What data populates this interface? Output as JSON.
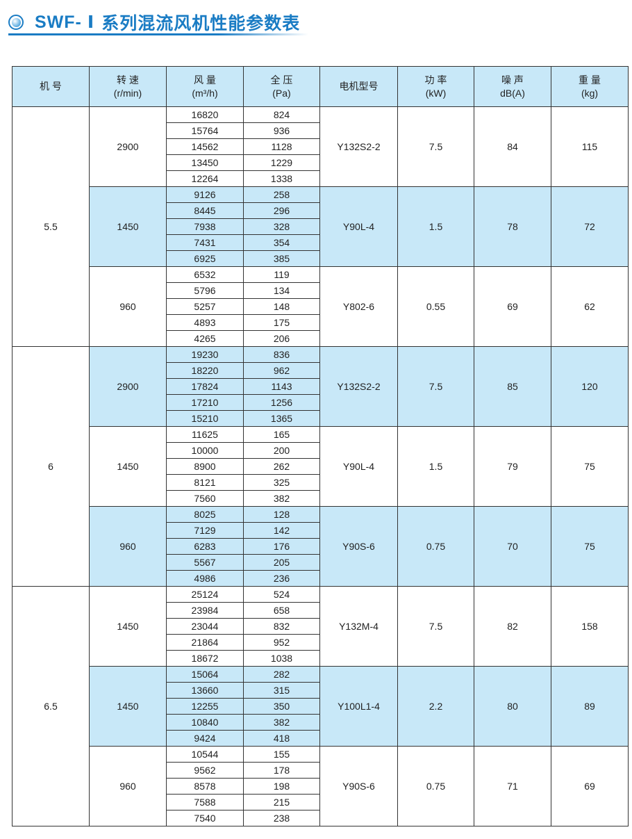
{
  "title": {
    "prefix": "SWF-",
    "roman": "Ⅰ",
    "text": "系列混流风机性能参数表"
  },
  "colors": {
    "accent": "#1a7cc4",
    "shade": "#c8e8f8"
  },
  "headers": [
    [
      "机 号",
      ""
    ],
    [
      "转 速",
      "(r/min)"
    ],
    [
      "风 量",
      "(m³/h)"
    ],
    [
      "全 压",
      "(Pa)"
    ],
    [
      "电机型号",
      ""
    ],
    [
      "功 率",
      "(kW)"
    ],
    [
      "噪 声",
      "dB(A)"
    ],
    [
      "重 量",
      "(kg)"
    ]
  ],
  "models": [
    {
      "no": "5.5",
      "groups": [
        {
          "speed": "2900",
          "flow": [
            "16820",
            "15764",
            "14562",
            "13450",
            "12264"
          ],
          "pressure": [
            "824",
            "936",
            "1128",
            "1229",
            "1338"
          ],
          "motor": "Y132S2-2",
          "power": "7.5",
          "noise": "84",
          "weight": "115",
          "shaded": false
        },
        {
          "speed": "1450",
          "flow": [
            "9126",
            "8445",
            "7938",
            "7431",
            "6925"
          ],
          "pressure": [
            "258",
            "296",
            "328",
            "354",
            "385"
          ],
          "motor": "Y90L-4",
          "power": "1.5",
          "noise": "78",
          "weight": "72",
          "shaded": true
        },
        {
          "speed": "960",
          "flow": [
            "6532",
            "5796",
            "5257",
            "4893",
            "4265"
          ],
          "pressure": [
            "119",
            "134",
            "148",
            "175",
            "206"
          ],
          "motor": "Y802-6",
          "power": "0.55",
          "noise": "69",
          "weight": "62",
          "shaded": false
        }
      ]
    },
    {
      "no": "6",
      "groups": [
        {
          "speed": "2900",
          "flow": [
            "19230",
            "18220",
            "17824",
            "17210",
            "15210"
          ],
          "pressure": [
            "836",
            "962",
            "1143",
            "1256",
            "1365"
          ],
          "motor": "Y132S2-2",
          "power": "7.5",
          "noise": "85",
          "weight": "120",
          "shaded": true
        },
        {
          "speed": "1450",
          "flow": [
            "11625",
            "10000",
            "8900",
            "8121",
            "7560"
          ],
          "pressure": [
            "165",
            "200",
            "262",
            "325",
            "382"
          ],
          "motor": "Y90L-4",
          "power": "1.5",
          "noise": "79",
          "weight": "75",
          "shaded": false
        },
        {
          "speed": "960",
          "flow": [
            "8025",
            "7129",
            "6283",
            "5567",
            "4986"
          ],
          "pressure": [
            "128",
            "142",
            "176",
            "205",
            "236"
          ],
          "motor": "Y90S-6",
          "power": "0.75",
          "noise": "70",
          "weight": "75",
          "shaded": true
        }
      ]
    },
    {
      "no": "6.5",
      "groups": [
        {
          "speed": "1450",
          "flow": [
            "25124",
            "23984",
            "23044",
            "21864",
            "18672"
          ],
          "pressure": [
            "524",
            "658",
            "832",
            "952",
            "1038"
          ],
          "motor": "Y132M-4",
          "power": "7.5",
          "noise": "82",
          "weight": "158",
          "shaded": false
        },
        {
          "speed": "1450",
          "flow": [
            "15064",
            "13660",
            "12255",
            "10840",
            "9424"
          ],
          "pressure": [
            "282",
            "315",
            "350",
            "382",
            "418"
          ],
          "motor": "Y100L1-4",
          "power": "2.2",
          "noise": "80",
          "weight": "89",
          "shaded": true
        },
        {
          "speed": "960",
          "flow": [
            "10544",
            "9562",
            "8578",
            "7588",
            "7540"
          ],
          "pressure": [
            "155",
            "178",
            "198",
            "215",
            "238"
          ],
          "motor": "Y90S-6",
          "power": "0.75",
          "noise": "71",
          "weight": "69",
          "shaded": false
        }
      ]
    }
  ]
}
